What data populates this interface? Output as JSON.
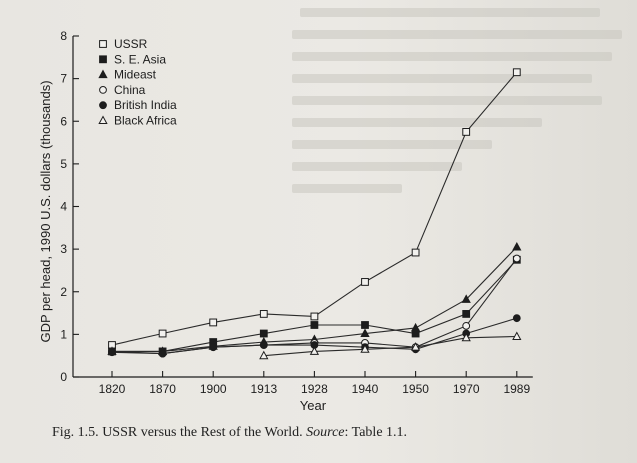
{
  "caption": {
    "label": "Fig. 1.5.",
    "text": "USSR versus the Rest of the World.",
    "source_label": "Source",
    "source_text": ": Table 1.1."
  },
  "chart_data": {
    "type": "line",
    "xlabel": "Year",
    "ylabel": "GDP per head, 1990 U.S. dollars (thousands)",
    "categories": [
      "1820",
      "1870",
      "1900",
      "1913",
      "1928",
      "1940",
      "1950",
      "1970",
      "1989"
    ],
    "ylim": [
      0,
      8
    ],
    "yticks": [
      0,
      1,
      2,
      3,
      4,
      5,
      6,
      7,
      8
    ],
    "grid": false,
    "legend_position": "top-left",
    "series": [
      {
        "name": "USSR",
        "marker": "open-square",
        "values": [
          0.75,
          1.02,
          1.28,
          1.48,
          1.42,
          2.23,
          2.92,
          5.75,
          7.15
        ]
      },
      {
        "name": "S. E. Asia",
        "marker": "filled-square",
        "values": [
          0.6,
          0.6,
          0.82,
          1.02,
          1.22,
          1.22,
          1.02,
          1.48,
          2.75
        ]
      },
      {
        "name": "Mideast",
        "marker": "filled-triangle",
        "values": [
          0.6,
          0.6,
          0.72,
          0.82,
          0.88,
          1.02,
          1.15,
          1.82,
          3.05
        ]
      },
      {
        "name": "China",
        "marker": "open-circle",
        "values": [
          0.6,
          0.55,
          0.7,
          0.75,
          0.8,
          0.8,
          0.7,
          1.2,
          2.78
        ]
      },
      {
        "name": "British India",
        "marker": "filled-circle",
        "values": [
          0.58,
          0.55,
          0.7,
          0.75,
          0.75,
          0.7,
          0.65,
          1.02,
          1.38
        ]
      },
      {
        "name": "Black Africa",
        "marker": "open-triangle",
        "values": [
          null,
          null,
          null,
          0.5,
          0.6,
          0.65,
          0.7,
          0.92,
          0.95
        ]
      }
    ]
  }
}
